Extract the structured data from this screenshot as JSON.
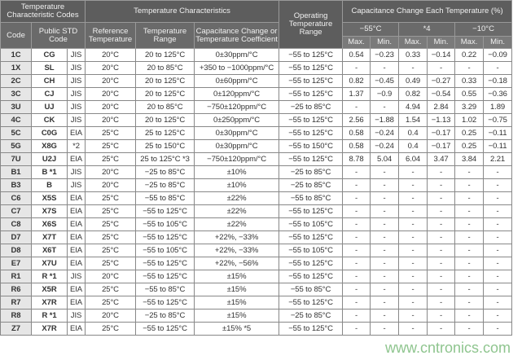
{
  "header": {
    "codes_group": "Temperature Characteristic Codes",
    "temp_group": "Temperature Characteristics",
    "operating": "Operating Temperature Range",
    "cap_group": "Capacitance Change Each Temperature (%)",
    "code": "Code",
    "public": "Public STD Code",
    "ref_temp": "Reference Temperature",
    "temp_range": "Temperature Range",
    "cap_change": "Capacitance Change or Temperature Coefficient",
    "t1": "−55°C",
    "t2": "*4",
    "t3": "−10°C",
    "max": "Max.",
    "min": "Min."
  },
  "rows": [
    [
      "1C",
      "CG",
      "JIS",
      "20°C",
      "20 to 125°C",
      "0±30ppm/°C",
      "−55 to 125°C",
      "0.54",
      "−0.23",
      "0.33",
      "−0.14",
      "0.22",
      "−0.09"
    ],
    [
      "1X",
      "SL",
      "JIS",
      "20°C",
      "20 to 85°C",
      "+350 to −1000ppm/°C",
      "−55 to 125°C",
      "-",
      "-",
      "-",
      "-",
      "-",
      "-"
    ],
    [
      "2C",
      "CH",
      "JIS",
      "20°C",
      "20 to 125°C",
      "0±60ppm/°C",
      "−55 to 125°C",
      "0.82",
      "−0.45",
      "0.49",
      "−0.27",
      "0.33",
      "−0.18"
    ],
    [
      "3C",
      "CJ",
      "JIS",
      "20°C",
      "20 to 125°C",
      "0±120ppm/°C",
      "−55 to 125°C",
      "1.37",
      "−0.9",
      "0.82",
      "−0.54",
      "0.55",
      "−0.36"
    ],
    [
      "3U",
      "UJ",
      "JIS",
      "20°C",
      "20 to 85°C",
      "−750±120ppm/°C",
      "−25 to 85°C",
      "-",
      "-",
      "4.94",
      "2.84",
      "3.29",
      "1.89"
    ],
    [
      "4C",
      "CK",
      "JIS",
      "20°C",
      "20 to 125°C",
      "0±250ppm/°C",
      "−55 to 125°C",
      "2.56",
      "−1.88",
      "1.54",
      "−1.13",
      "1.02",
      "−0.75"
    ],
    [
      "5C",
      "C0G",
      "EIA",
      "25°C",
      "25 to 125°C",
      "0±30ppm/°C",
      "−55 to 125°C",
      "0.58",
      "−0.24",
      "0.4",
      "−0.17",
      "0.25",
      "−0.11"
    ],
    [
      "5G",
      "X8G",
      "*2",
      "25°C",
      "25 to 150°C",
      "0±30ppm/°C",
      "−55 to 150°C",
      "0.58",
      "−0.24",
      "0.4",
      "−0.17",
      "0.25",
      "−0.11"
    ],
    [
      "7U",
      "U2J",
      "EIA",
      "25°C",
      "25 to 125°C *3",
      "−750±120ppm/°C",
      "−55 to 125°C",
      "8.78",
      "5.04",
      "6.04",
      "3.47",
      "3.84",
      "2.21"
    ],
    [
      "B1",
      "B *1",
      "JIS",
      "20°C",
      "−25 to 85°C",
      "±10%",
      "−25 to 85°C",
      "-",
      "-",
      "-",
      "-",
      "-",
      "-"
    ],
    [
      "B3",
      "B",
      "JIS",
      "20°C",
      "−25 to 85°C",
      "±10%",
      "−25 to 85°C",
      "-",
      "-",
      "-",
      "-",
      "-",
      "-"
    ],
    [
      "C6",
      "X5S",
      "EIA",
      "25°C",
      "−55 to 85°C",
      "±22%",
      "−55 to 85°C",
      "-",
      "-",
      "-",
      "-",
      "-",
      "-"
    ],
    [
      "C7",
      "X7S",
      "EIA",
      "25°C",
      "−55 to 125°C",
      "±22%",
      "−55 to 125°C",
      "-",
      "-",
      "-",
      "-",
      "-",
      "-"
    ],
    [
      "C8",
      "X6S",
      "EIA",
      "25°C",
      "−55 to 105°C",
      "±22%",
      "−55 to 105°C",
      "-",
      "-",
      "-",
      "-",
      "-",
      "-"
    ],
    [
      "D7",
      "X7T",
      "EIA",
      "25°C",
      "−55 to 125°C",
      "+22%, −33%",
      "−55 to 125°C",
      "-",
      "-",
      "-",
      "-",
      "-",
      "-"
    ],
    [
      "D8",
      "X6T",
      "EIA",
      "25°C",
      "−55 to 105°C",
      "+22%, −33%",
      "−55 to 105°C",
      "-",
      "-",
      "-",
      "-",
      "-",
      "-"
    ],
    [
      "E7",
      "X7U",
      "EIA",
      "25°C",
      "−55 to 125°C",
      "+22%, −56%",
      "−55 to 125°C",
      "-",
      "-",
      "-",
      "-",
      "-",
      "-"
    ],
    [
      "R1",
      "R *1",
      "JIS",
      "20°C",
      "−55 to 125°C",
      "±15%",
      "−55 to 125°C",
      "-",
      "-",
      "-",
      "-",
      "-",
      "-"
    ],
    [
      "R6",
      "X5R",
      "EIA",
      "25°C",
      "−55 to 85°C",
      "±15%",
      "−55 to 85°C",
      "-",
      "-",
      "-",
      "-",
      "-",
      "-"
    ],
    [
      "R7",
      "X7R",
      "EIA",
      "25°C",
      "−55 to 125°C",
      "±15%",
      "−55 to 125°C",
      "-",
      "-",
      "-",
      "-",
      "-",
      "-"
    ],
    [
      "R8",
      "R *1",
      "JIS",
      "20°C",
      "−25 to 85°C",
      "±15%",
      "−25 to 85°C",
      "-",
      "-",
      "-",
      "-",
      "-",
      "-"
    ],
    [
      "Z7",
      "X7R",
      "EIA",
      "25°C",
      "−55 to 125°C",
      "±15% *5",
      "−55 to 125°C",
      "-",
      "-",
      "-",
      "-",
      "-",
      "-"
    ]
  ],
  "watermark": "www.cntronics.com"
}
